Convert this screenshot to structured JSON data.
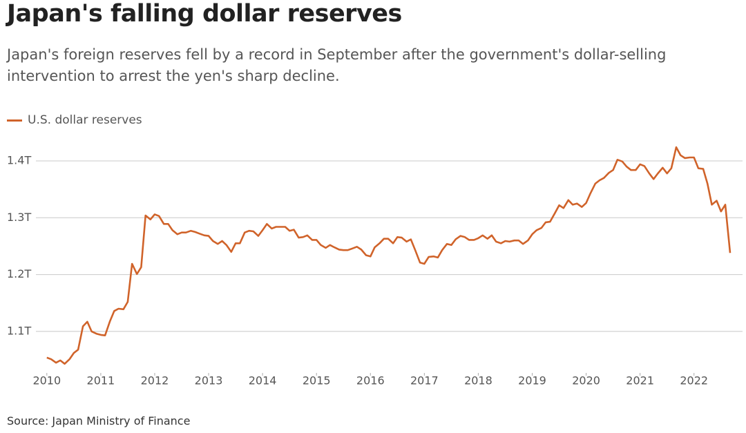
{
  "chart_data": {
    "type": "line",
    "title": "Japan's falling dollar reserves",
    "subtitle": "Japan's foreign reserves fell by a record in September after the government's dollar-selling intervention to arrest the yen's sharp decline.",
    "source": "Source: Japan Ministry of Finance",
    "x": [
      2010,
      2010.08,
      2010.17,
      2010.25,
      2010.33,
      2010.42,
      2010.5,
      2010.58,
      2010.67,
      2010.75,
      2010.83,
      2010.92,
      2011,
      2011.08,
      2011.17,
      2011.25,
      2011.33,
      2011.42,
      2011.5,
      2011.58,
      2011.67,
      2011.75,
      2011.83,
      2011.92,
      2012,
      2012.08,
      2012.17,
      2012.25,
      2012.33,
      2012.42,
      2012.5,
      2012.58,
      2012.67,
      2012.75,
      2012.83,
      2012.92,
      2013,
      2013.08,
      2013.17,
      2013.25,
      2013.33,
      2013.42,
      2013.5,
      2013.58,
      2013.67,
      2013.75,
      2013.83,
      2013.92,
      2014,
      2014.08,
      2014.17,
      2014.25,
      2014.33,
      2014.42,
      2014.5,
      2014.58,
      2014.67,
      2014.75,
      2014.83,
      2014.92,
      2015,
      2015.08,
      2015.17,
      2015.25,
      2015.33,
      2015.42,
      2015.5,
      2015.58,
      2015.67,
      2015.75,
      2015.83,
      2015.92,
      2016,
      2016.08,
      2016.17,
      2016.25,
      2016.33,
      2016.42,
      2016.5,
      2016.58,
      2016.67,
      2016.75,
      2016.83,
      2016.92,
      2017,
      2017.08,
      2017.17,
      2017.25,
      2017.33,
      2017.42,
      2017.5,
      2017.58,
      2017.67,
      2017.75,
      2017.83,
      2017.92,
      2018,
      2018.08,
      2018.17,
      2018.25,
      2018.33,
      2018.42,
      2018.5,
      2018.58,
      2018.67,
      2018.75,
      2018.83,
      2018.92,
      2019,
      2019.08,
      2019.17,
      2019.25,
      2019.33,
      2019.42,
      2019.5,
      2019.58,
      2019.67,
      2019.75,
      2019.83,
      2019.92,
      2020,
      2020.08,
      2020.17,
      2020.25,
      2020.33,
      2020.42,
      2020.5,
      2020.58,
      2020.67,
      2020.75,
      2020.83,
      2020.92,
      2021,
      2021.08,
      2021.17,
      2021.25,
      2021.33,
      2021.42,
      2021.5,
      2021.58,
      2021.67,
      2021.75,
      2021.83,
      2021.92,
      2022,
      2022.08,
      2022.17,
      2022.25,
      2022.33,
      2022.42,
      2022.5,
      2022.58,
      2022.67
    ],
    "series": [
      {
        "name": "U.S. dollar reserves",
        "color": "#d0632a",
        "values": [
          1.054,
          1.051,
          1.045,
          1.049,
          1.043,
          1.051,
          1.062,
          1.068,
          1.109,
          1.117,
          1.1,
          1.096,
          1.094,
          1.093,
          1.118,
          1.136,
          1.14,
          1.139,
          1.152,
          1.219,
          1.201,
          1.213,
          1.304,
          1.297,
          1.306,
          1.303,
          1.289,
          1.289,
          1.278,
          1.271,
          1.274,
          1.274,
          1.277,
          1.275,
          1.272,
          1.269,
          1.268,
          1.259,
          1.254,
          1.259,
          1.252,
          1.24,
          1.255,
          1.255,
          1.274,
          1.277,
          1.276,
          1.268,
          1.278,
          1.289,
          1.281,
          1.284,
          1.284,
          1.284,
          1.277,
          1.279,
          1.265,
          1.266,
          1.269,
          1.261,
          1.261,
          1.252,
          1.247,
          1.252,
          1.248,
          1.244,
          1.243,
          1.243,
          1.246,
          1.249,
          1.244,
          1.234,
          1.232,
          1.248,
          1.255,
          1.263,
          1.263,
          1.255,
          1.266,
          1.265,
          1.258,
          1.262,
          1.243,
          1.221,
          1.219,
          1.231,
          1.232,
          1.23,
          1.243,
          1.254,
          1.252,
          1.262,
          1.268,
          1.266,
          1.261,
          1.261,
          1.264,
          1.269,
          1.263,
          1.269,
          1.258,
          1.255,
          1.259,
          1.258,
          1.26,
          1.26,
          1.254,
          1.26,
          1.271,
          1.278,
          1.282,
          1.292,
          1.293,
          1.308,
          1.322,
          1.317,
          1.331,
          1.323,
          1.325,
          1.319,
          1.326,
          1.343,
          1.36,
          1.366,
          1.37,
          1.379,
          1.384,
          1.402,
          1.399,
          1.39,
          1.384,
          1.384,
          1.394,
          1.391,
          1.378,
          1.368,
          1.378,
          1.388,
          1.378,
          1.387,
          1.424,
          1.41,
          1.405,
          1.406,
          1.406,
          1.387,
          1.386,
          1.36,
          1.323,
          1.33,
          1.311,
          1.323,
          1.238
        ]
      }
    ],
    "xlim": [
      2009.9,
      2022.9
    ],
    "xticks": [
      2010,
      2011,
      2012,
      2013,
      2014,
      2015,
      2016,
      2017,
      2018,
      2019,
      2020,
      2021,
      2022
    ],
    "ylim": [
      1.027,
      1.434
    ],
    "yticks": [
      {
        "value": 1.1,
        "label": "1.1T"
      },
      {
        "value": 1.2,
        "label": "1.2T"
      },
      {
        "value": 1.3,
        "label": "1.3T"
      },
      {
        "value": 1.4,
        "label": "1.4T"
      }
    ],
    "grid": true
  }
}
